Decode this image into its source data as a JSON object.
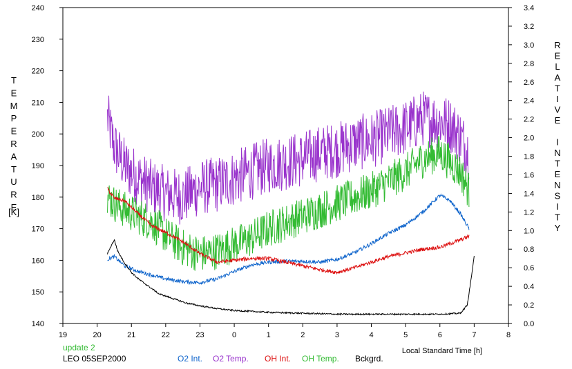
{
  "chart_data": {
    "type": "line",
    "title": "",
    "xlabel": "Local Standard Time [h]",
    "ylabel_left_letters": [
      "T",
      "E",
      "M",
      "P",
      "E",
      "R",
      "A",
      "T",
      "U",
      "R",
      "E"
    ],
    "ylabel_left_unit": "[K]",
    "ylabel_right_letters": [
      "R",
      "E",
      "L",
      "A",
      "T",
      "I",
      "V",
      "E",
      "",
      "I",
      "N",
      "T",
      "E",
      "N",
      "S",
      "I",
      "T",
      "Y"
    ],
    "x_range": [
      19,
      32
    ],
    "x_ticks": [
      19,
      20,
      21,
      22,
      23,
      24,
      25,
      26,
      27,
      28,
      29,
      30,
      31,
      32
    ],
    "x_tick_labels": [
      "19",
      "20",
      "21",
      "22",
      "23",
      "0",
      "1",
      "2",
      "3",
      "4",
      "5",
      "6",
      "7",
      "8"
    ],
    "y_left_range": [
      140,
      240
    ],
    "y_left_ticks": [
      "140",
      "150",
      "160",
      "170",
      "180",
      "190",
      "200",
      "210",
      "220",
      "230",
      "240"
    ],
    "y_right_range": [
      0,
      3.4
    ],
    "y_right_ticks": [
      "0.0",
      "0.2",
      "0.4",
      "0.6",
      "0.8",
      "1.0",
      "1.2",
      "1.4",
      "1.6",
      "1.8",
      "2.0",
      "2.2",
      "2.4",
      "2.6",
      "2.8",
      "3.0",
      "3.2",
      "3.4"
    ],
    "grid": false,
    "series": [
      {
        "name": "O2 Temp.",
        "axis": "left",
        "color": "#9933cc",
        "noise": 9,
        "x": [
          20.3,
          20.5,
          20.8,
          21.2,
          21.6,
          22.0,
          22.5,
          23.0,
          23.5,
          24.0,
          24.5,
          25.0,
          25.5,
          26.0,
          26.5,
          27.0,
          27.5,
          28.0,
          28.5,
          29.0,
          29.5,
          30.0,
          30.3,
          30.6,
          30.85
        ],
        "y": [
          205,
          196,
          190,
          186,
          183,
          181,
          180,
          183,
          184,
          186,
          188,
          190,
          191,
          192,
          194,
          195,
          197,
          198,
          200,
          202,
          205,
          204,
          203,
          199,
          194
        ]
      },
      {
        "name": "OH Temp.",
        "axis": "left",
        "color": "#33bb33",
        "noise": 6,
        "x": [
          20.3,
          20.5,
          20.8,
          21.2,
          21.6,
          22.0,
          22.5,
          23.0,
          23.5,
          24.0,
          24.5,
          25.0,
          25.5,
          26.0,
          26.5,
          27.0,
          27.5,
          28.0,
          28.5,
          29.0,
          29.5,
          30.0,
          30.3,
          30.6,
          30.85
        ],
        "y": [
          180,
          178,
          176,
          174,
          172,
          168,
          164,
          162,
          163,
          165,
          167,
          170,
          172,
          174,
          176,
          178,
          180,
          182,
          185,
          188,
          192,
          194,
          191,
          188,
          182
        ]
      },
      {
        "name": "O2 Int.",
        "axis": "right",
        "color": "#1166cc",
        "noise": 0.02,
        "x": [
          20.3,
          20.5,
          20.8,
          21.2,
          21.6,
          22.0,
          22.5,
          23.0,
          23.5,
          24.0,
          24.5,
          25.0,
          25.5,
          26.0,
          26.5,
          27.0,
          27.5,
          28.0,
          28.5,
          29.0,
          29.5,
          30.0,
          30.3,
          30.6,
          30.85
        ],
        "y": [
          0.69,
          0.72,
          0.62,
          0.56,
          0.52,
          0.48,
          0.45,
          0.44,
          0.48,
          0.56,
          0.63,
          0.66,
          0.67,
          0.67,
          0.66,
          0.69,
          0.76,
          0.86,
          0.97,
          1.06,
          1.2,
          1.38,
          1.32,
          1.18,
          1.02
        ]
      },
      {
        "name": "OH Int.",
        "axis": "right",
        "color": "#dd1111",
        "noise": 0.02,
        "x": [
          20.3,
          20.5,
          20.8,
          21.2,
          21.6,
          22.0,
          22.5,
          23.0,
          23.5,
          24.0,
          24.5,
          25.0,
          25.5,
          26.0,
          26.5,
          27.0,
          27.5,
          28.0,
          28.5,
          29.0,
          29.5,
          30.0,
          30.3,
          30.6,
          30.85
        ],
        "y": [
          1.45,
          1.35,
          1.32,
          1.18,
          1.05,
          0.98,
          0.88,
          0.75,
          0.66,
          0.68,
          0.7,
          0.7,
          0.66,
          0.62,
          0.58,
          0.55,
          0.6,
          0.66,
          0.72,
          0.76,
          0.8,
          0.82,
          0.86,
          0.9,
          0.94
        ]
      },
      {
        "name": "Bckgrd.",
        "axis": "right",
        "color": "#000000",
        "noise": 0.008,
        "x": [
          20.3,
          20.4,
          20.5,
          20.6,
          20.8,
          21.0,
          21.2,
          21.5,
          21.8,
          22.2,
          22.6,
          23.0,
          23.5,
          24.0,
          25.0,
          26.0,
          27.0,
          28.0,
          29.0,
          30.0,
          30.6,
          30.8,
          30.9,
          31.0
        ],
        "y": [
          0.75,
          0.83,
          0.9,
          0.78,
          0.65,
          0.55,
          0.48,
          0.4,
          0.32,
          0.27,
          0.22,
          0.19,
          0.16,
          0.14,
          0.12,
          0.11,
          0.1,
          0.1,
          0.1,
          0.1,
          0.11,
          0.2,
          0.45,
          0.72
        ]
      }
    ]
  },
  "footer": {
    "update_text": "update 2",
    "dataset_label": "LEO 05SEP2000",
    "legend": [
      {
        "label": "O2 Int.",
        "color": "#1166cc"
      },
      {
        "label": "O2 Temp.",
        "color": "#9933cc"
      },
      {
        "label": "OH Int.",
        "color": "#dd1111"
      },
      {
        "label": "OH Temp.",
        "color": "#33bb33"
      },
      {
        "label": "Bckgrd.",
        "color": "#000000"
      }
    ]
  }
}
